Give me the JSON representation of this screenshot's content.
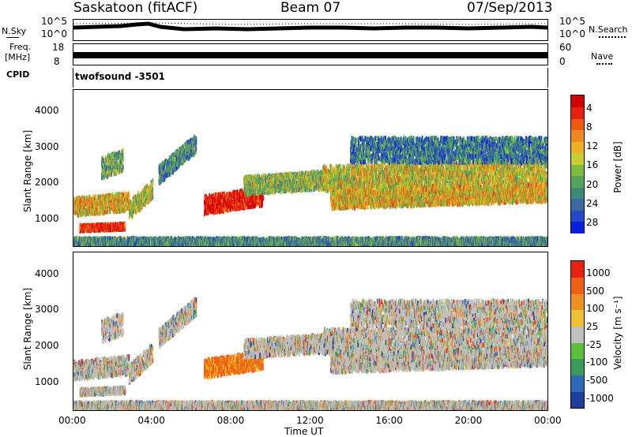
{
  "header": {
    "station": "Saskatoon (fitACF)",
    "beam": "Beam 07",
    "date": "07/Sep/2013"
  },
  "noise_panel": {
    "left_label": "N.Sky",
    "right_label": "N.Search",
    "ticks_left": [
      "10^5",
      "10^0"
    ],
    "ticks_right": [
      "10^5",
      "10^0"
    ]
  },
  "freq_panel": {
    "left_label_1": "Freq.",
    "left_label_2": "[MHz]",
    "ticks_left": [
      "18",
      "8"
    ],
    "ticks_right": [
      "60",
      "0"
    ],
    "right_label": "Nave"
  },
  "cpid_panel": {
    "label": "CPID",
    "value": "twofsound -3501"
  },
  "chart_data": [
    {
      "type": "heatmap",
      "title": "",
      "xlabel": "",
      "ylabel": "Slant Range [km]",
      "ylim": [
        200,
        4600
      ],
      "yticks": [
        "1000",
        "2000",
        "3000",
        "4000"
      ],
      "xticks": [
        "00:00",
        "04:00",
        "08:00",
        "12:00",
        "16:00",
        "20:00",
        "00:00"
      ],
      "colorbar": {
        "label": "Power [dB]",
        "ticks": [
          "4",
          "8",
          "12",
          "16",
          "20",
          "24",
          "28"
        ],
        "colors": [
          "#0a1ee0",
          "#2748c8",
          "#3a6aa0",
          "#3a8c7a",
          "#52a45a",
          "#7cbe3a",
          "#c8d030",
          "#f0b020",
          "#f08820",
          "#f05a10",
          "#e82010",
          "#d40000"
        ]
      }
    },
    {
      "type": "heatmap",
      "title": "",
      "xlabel": "Time UT",
      "ylabel": "Slant Range [km]",
      "ylim": [
        200,
        4600
      ],
      "yticks": [
        "1000",
        "2000",
        "3000",
        "4000"
      ],
      "xticks": [
        "00:00",
        "04:00",
        "08:00",
        "12:00",
        "16:00",
        "20:00",
        "00:00"
      ],
      "colorbar": {
        "label": "Velocity [m s⁻¹]",
        "ticks": [
          "1000",
          "500",
          "100",
          "25",
          "-25",
          "-100",
          "-500",
          "-1000"
        ],
        "colors": [
          "#1f3fa0",
          "#2a6ab8",
          "#3a9a5a",
          "#5ac03a",
          "#c0c0c0",
          "#f0c030",
          "#f09020",
          "#f06010",
          "#e82010"
        ]
      }
    }
  ]
}
